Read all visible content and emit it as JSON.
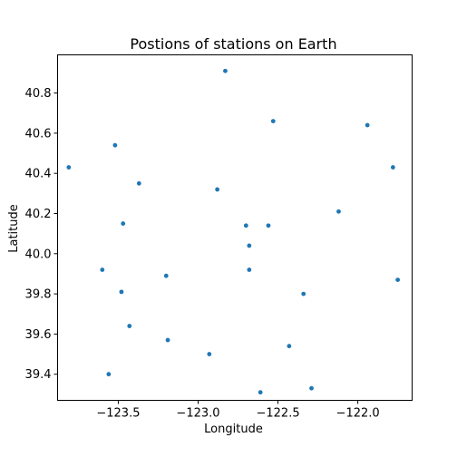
{
  "chart_data": {
    "type": "scatter",
    "title": "Postions of stations on Earth",
    "xlabel": "Longitude",
    "ylabel": "Latitude",
    "xlim": [
      -123.88,
      -121.66
    ],
    "ylim": [
      39.27,
      40.99
    ],
    "xticks": [
      -123.5,
      -123.0,
      -122.5,
      -122.0
    ],
    "xtick_labels": [
      "−123.5",
      "−123.0",
      "−122.5",
      "−122.0"
    ],
    "yticks": [
      39.4,
      39.6,
      39.8,
      40.0,
      40.2,
      40.4,
      40.6,
      40.8
    ],
    "ytick_labels": [
      "39.4",
      "39.6",
      "39.8",
      "40.0",
      "40.2",
      "40.4",
      "40.6",
      "40.8"
    ],
    "grid": false,
    "marker_color": "#1f77b4",
    "points": [
      {
        "x": -122.83,
        "y": 40.91
      },
      {
        "x": -122.53,
        "y": 40.66
      },
      {
        "x": -121.94,
        "y": 40.64
      },
      {
        "x": -123.52,
        "y": 40.54
      },
      {
        "x": -123.81,
        "y": 40.43
      },
      {
        "x": -121.78,
        "y": 40.43
      },
      {
        "x": -123.37,
        "y": 40.35
      },
      {
        "x": -122.88,
        "y": 40.32
      },
      {
        "x": -122.12,
        "y": 40.21
      },
      {
        "x": -123.47,
        "y": 40.15
      },
      {
        "x": -122.7,
        "y": 40.14
      },
      {
        "x": -122.56,
        "y": 40.14
      },
      {
        "x": -122.68,
        "y": 40.04
      },
      {
        "x": -123.6,
        "y": 39.92
      },
      {
        "x": -122.68,
        "y": 39.92
      },
      {
        "x": -123.2,
        "y": 39.89
      },
      {
        "x": -121.75,
        "y": 39.87
      },
      {
        "x": -123.48,
        "y": 39.81
      },
      {
        "x": -122.34,
        "y": 39.8
      },
      {
        "x": -123.43,
        "y": 39.64
      },
      {
        "x": -123.19,
        "y": 39.57
      },
      {
        "x": -122.43,
        "y": 39.54
      },
      {
        "x": -122.93,
        "y": 39.5
      },
      {
        "x": -123.56,
        "y": 39.4
      },
      {
        "x": -122.29,
        "y": 39.33
      },
      {
        "x": -122.61,
        "y": 39.31
      }
    ]
  }
}
